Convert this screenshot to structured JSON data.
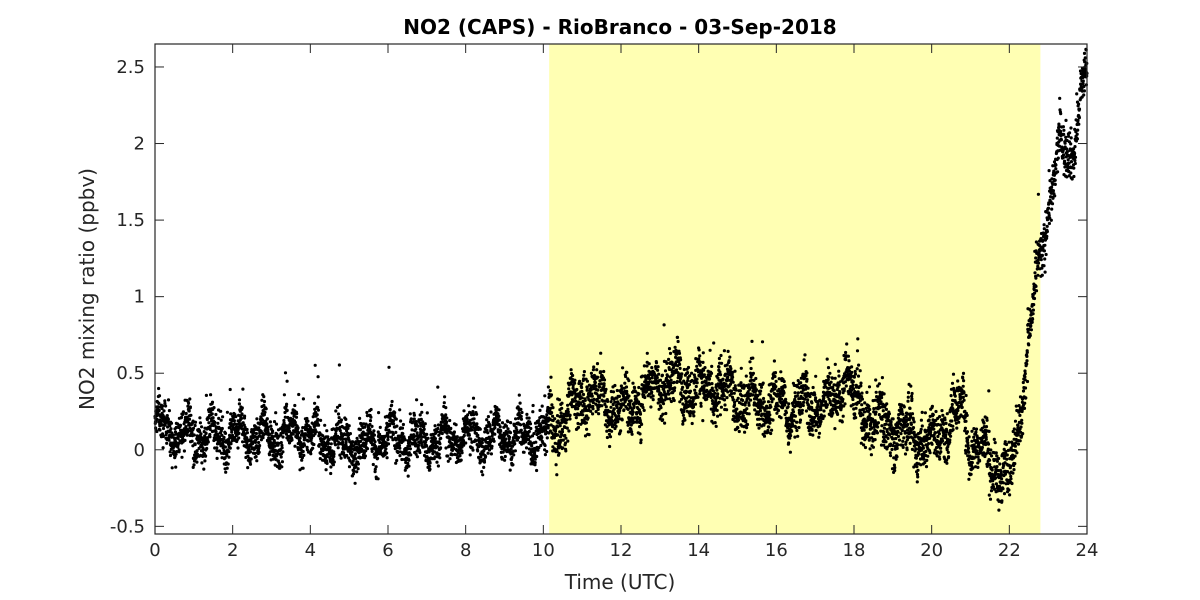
{
  "chart_data": {
    "type": "scatter",
    "title": "NO2 (CAPS) - RioBranco - 03-Sep-2018",
    "xlabel": "Time (UTC)",
    "ylabel": "NO2 mixing ratio (ppbv)",
    "xlim": [
      0,
      24
    ],
    "ylim": [
      -0.55,
      2.65
    ],
    "xticks": [
      0,
      2,
      4,
      6,
      8,
      10,
      12,
      14,
      16,
      18,
      20,
      22,
      24
    ],
    "yticks": [
      -0.5,
      0,
      0.5,
      1,
      1.5,
      2,
      2.5
    ],
    "grid": false,
    "legend": "none",
    "highlight_region": {
      "x_start": 10.15,
      "x_end": 22.8,
      "color": "#ffffb3"
    },
    "marker_color": "#000000",
    "series": [
      {
        "x": [
          0,
          0.5,
          1,
          1.5,
          2,
          2.5,
          3,
          3.5,
          4,
          4.5,
          5,
          5.5,
          6,
          6.5,
          7,
          7.5,
          8,
          8.5,
          9,
          9.5,
          10,
          10.5,
          11,
          11.5,
          12,
          12.5,
          13,
          13.5,
          14,
          14.5,
          15,
          15.5,
          16,
          16.5,
          17,
          17.5,
          17.8,
          18,
          18.5,
          19,
          19.5,
          20,
          20.5,
          20.8,
          21,
          21.5,
          21.8,
          22,
          22.3,
          22.6,
          23,
          23.3,
          23.6,
          24
        ],
        "y": [
          0.15,
          0.12,
          0.1,
          0.1,
          0.08,
          0.1,
          0.08,
          0.12,
          0.1,
          0.05,
          0.03,
          0.05,
          0.08,
          0.06,
          0.05,
          0.07,
          0.1,
          0.08,
          0.1,
          0.08,
          0.1,
          0.2,
          0.35,
          0.35,
          0.25,
          0.35,
          0.45,
          0.45,
          0.4,
          0.4,
          0.35,
          0.3,
          0.3,
          0.28,
          0.3,
          0.3,
          0.55,
          0.3,
          0.2,
          0.15,
          0.1,
          0.05,
          0.2,
          0.3,
          0.05,
          -0.05,
          -0.15,
          -0.2,
          0.3,
          0.9,
          1.6,
          1.95,
          1.95,
          2.5
        ]
      }
    ]
  }
}
